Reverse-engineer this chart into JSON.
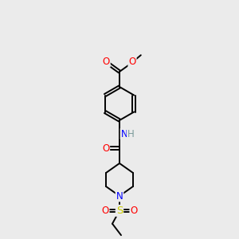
{
  "background_color": "#ebebeb",
  "atom_colors": {
    "C": "#000000",
    "H": "#7a9a9a",
    "N": "#0000FF",
    "O": "#FF0000",
    "S": "#cccc00"
  },
  "figsize": [
    3.0,
    3.0
  ],
  "dpi": 100,
  "lw": 1.4,
  "fs": 8.5
}
